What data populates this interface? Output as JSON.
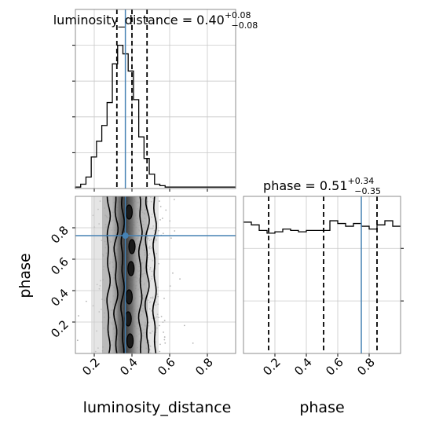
{
  "chart_data": [
    {
      "type": "histogram",
      "panel": "luminosity_distance marginal",
      "title_text": "luminosity_distance = 0.40",
      "title_sup": "+0.08",
      "title_sub": "−0.08",
      "xlim": [
        0.1,
        0.95
      ],
      "x_ticks": [
        0.2,
        0.4,
        0.6,
        0.8
      ],
      "bin_edges": [
        0.1,
        0.128,
        0.156,
        0.184,
        0.212,
        0.24,
        0.268,
        0.296,
        0.324,
        0.352,
        0.38,
        0.408,
        0.436,
        0.464,
        0.492,
        0.52,
        0.548,
        0.576,
        0.604,
        0.632,
        0.66,
        0.95
      ],
      "counts": [
        0.01,
        0.03,
        0.08,
        0.22,
        0.33,
        0.44,
        0.6,
        0.87,
        1.0,
        0.94,
        0.82,
        0.62,
        0.36,
        0.21,
        0.1,
        0.03,
        0.02,
        0.01,
        0.01,
        0.01,
        0.01
      ],
      "quantiles": [
        0.32,
        0.4,
        0.48
      ],
      "truth": 0.365,
      "grid": true
    },
    {
      "type": "histogram",
      "panel": "phase marginal",
      "title_text": "phase = 0.51",
      "title_sup": "+0.34",
      "title_sub": "−0.35",
      "xlim": [
        0.0,
        1.0
      ],
      "x_ticks": [
        0.2,
        0.4,
        0.6,
        0.8
      ],
      "x_tick_labels": [
        "0.2",
        "0.4",
        "0.6",
        "0.8"
      ],
      "xlabel": "phase",
      "bin_edges": [
        0.0,
        0.05,
        0.1,
        0.15,
        0.2,
        0.25,
        0.3,
        0.35,
        0.4,
        0.45,
        0.5,
        0.55,
        0.6,
        0.65,
        0.7,
        0.75,
        0.8,
        0.85,
        0.9,
        0.95,
        1.0
      ],
      "counts": [
        0.95,
        0.93,
        0.89,
        0.87,
        0.88,
        0.9,
        0.89,
        0.88,
        0.89,
        0.89,
        0.89,
        0.96,
        0.94,
        0.92,
        0.94,
        0.92,
        0.9,
        0.93,
        0.96,
        0.92
      ],
      "quantiles": [
        0.16,
        0.51,
        0.85
      ],
      "truth": 0.75,
      "grid": true
    },
    {
      "type": "scatter_contour",
      "panel": "luminosity_distance vs phase",
      "xlim": [
        0.1,
        0.95
      ],
      "ylim": [
        0.0,
        1.0
      ],
      "x_ticks": [
        0.2,
        0.4,
        0.6,
        0.8
      ],
      "x_tick_labels": [
        "0.2",
        "0.4",
        "0.6",
        "0.8"
      ],
      "y_ticks": [
        0.2,
        0.4,
        0.6,
        0.8
      ],
      "y_tick_labels": [
        "0.2",
        "0.4",
        "0.6",
        "0.8"
      ],
      "xlabel": "luminosity_distance",
      "ylabel": "phase",
      "truth_x": 0.365,
      "truth_y": 0.75,
      "grid": true
    }
  ],
  "colors": {
    "truth": "#4682b4",
    "hist": "#000000",
    "grid": "#c8c8c8",
    "points": "#b4b4b4"
  }
}
